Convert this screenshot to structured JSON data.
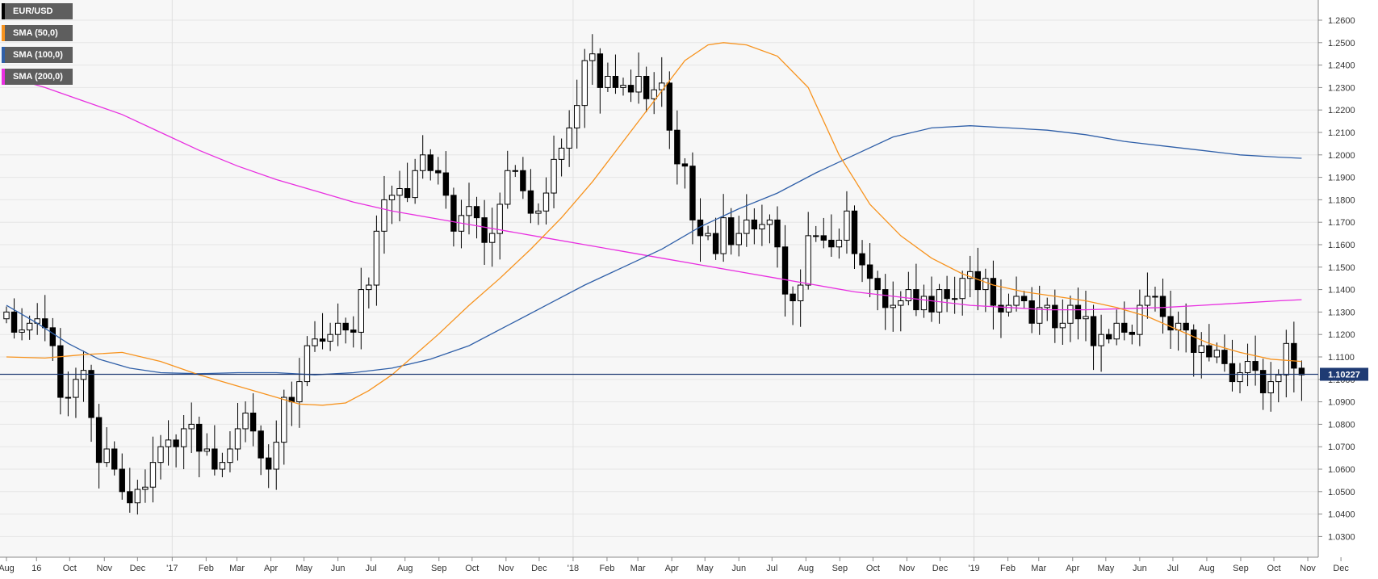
{
  "legend": [
    {
      "label": "EUR/USD",
      "color": "#000000"
    },
    {
      "label": "SMA (50,0)",
      "color": "#f7931e"
    },
    {
      "label": "SMA (100,0)",
      "color": "#2f5fa8"
    },
    {
      "label": "SMA (200,0)",
      "color": "#e82fe0"
    }
  ],
  "price_label": "1.10227",
  "chart_data": {
    "type": "candlestick",
    "symbol": "EUR/USD",
    "timeframe": "weekly",
    "ylim": [
      1.024,
      1.265
    ],
    "y_ticks": [
      "1.2600",
      "1.2500",
      "1.2400",
      "1.2300",
      "1.2200",
      "1.2100",
      "1.2000",
      "1.1900",
      "1.1800",
      "1.1700",
      "1.1600",
      "1.1500",
      "1.1400",
      "1.1300",
      "1.1200",
      "1.1100",
      "1.1000",
      "1.0900",
      "1.0800",
      "1.0700",
      "1.0600",
      "1.0500",
      "1.0400",
      "1.0300"
    ],
    "x_ticks": [
      {
        "label": "Aug",
        "week": 0
      },
      {
        "label": "16",
        "week": 3.9
      },
      {
        "label": "Oct",
        "week": 8.2
      },
      {
        "label": "Nov",
        "week": 12.7
      },
      {
        "label": "Dec",
        "week": 17.0
      },
      {
        "label": "'17",
        "week": 21.5
      },
      {
        "label": "Feb",
        "week": 25.9
      },
      {
        "label": "Mar",
        "week": 29.9
      },
      {
        "label": "Apr",
        "week": 34.3
      },
      {
        "label": "May",
        "week": 38.6
      },
      {
        "label": "Jun",
        "week": 43.0
      },
      {
        "label": "Jul",
        "week": 47.3
      },
      {
        "label": "Aug",
        "week": 51.7
      },
      {
        "label": "Sep",
        "week": 56.1
      },
      {
        "label": "Oct",
        "week": 60.4
      },
      {
        "label": "Nov",
        "week": 64.8
      },
      {
        "label": "Dec",
        "week": 69.1
      },
      {
        "label": "'18",
        "week": 73.5
      },
      {
        "label": "Feb",
        "week": 77.9
      },
      {
        "label": "Mar",
        "week": 81.9
      },
      {
        "label": "Apr",
        "week": 86.3
      },
      {
        "label": "May",
        "week": 90.6
      },
      {
        "label": "Jun",
        "week": 95.0
      },
      {
        "label": "Jul",
        "week": 99.3
      },
      {
        "label": "Aug",
        "week": 103.7
      },
      {
        "label": "Sep",
        "week": 108.1
      },
      {
        "label": "Oct",
        "week": 112.4
      },
      {
        "label": "Nov",
        "week": 116.8
      },
      {
        "label": "Dec",
        "week": 121.1
      },
      {
        "label": "'19",
        "week": 125.5
      },
      {
        "label": "Feb",
        "week": 129.9
      },
      {
        "label": "Mar",
        "week": 133.9
      },
      {
        "label": "Apr",
        "week": 138.3
      },
      {
        "label": "May",
        "week": 142.6
      },
      {
        "label": "Jun",
        "week": 147.0
      },
      {
        "label": "Jul",
        "week": 151.3
      },
      {
        "label": "Aug",
        "week": 155.7
      },
      {
        "label": "Sep",
        "week": 160.1
      },
      {
        "label": "Oct",
        "week": 164.4
      },
      {
        "label": "Nov",
        "week": 168.8
      },
      {
        "label": "Dec",
        "week": 173.1
      }
    ],
    "current_price": 1.10227,
    "close": [
      1.13,
      1.121,
      1.122,
      1.125,
      1.127,
      1.123,
      1.115,
      1.092,
      1.092,
      1.1,
      1.104,
      1.083,
      1.063,
      1.069,
      1.06,
      1.05,
      1.045,
      1.051,
      1.052,
      1.063,
      1.07,
      1.073,
      1.07,
      1.078,
      1.08,
      1.068,
      1.069,
      1.06,
      1.063,
      1.069,
      1.078,
      1.085,
      1.077,
      1.065,
      1.06,
      1.072,
      1.092,
      1.09,
      1.099,
      1.115,
      1.118,
      1.117,
      1.12,
      1.125,
      1.122,
      1.121,
      1.14,
      1.142,
      1.166,
      1.18,
      1.182,
      1.185,
      1.181,
      1.193,
      1.2,
      1.193,
      1.192,
      1.182,
      1.166,
      1.173,
      1.177,
      1.172,
      1.161,
      1.165,
      1.178,
      1.193,
      1.193,
      1.184,
      1.174,
      1.175,
      1.183,
      1.198,
      1.203,
      1.212,
      1.222,
      1.242,
      1.245,
      1.23,
      1.235,
      1.23,
      1.231,
      1.228,
      1.235,
      1.225,
      1.229,
      1.232,
      1.211,
      1.196,
      1.195,
      1.171,
      1.164,
      1.165,
      1.156,
      1.172,
      1.16,
      1.165,
      1.171,
      1.167,
      1.169,
      1.171,
      1.159,
      1.138,
      1.135,
      1.142,
      1.164,
      1.164,
      1.162,
      1.159,
      1.162,
      1.175,
      1.156,
      1.151,
      1.145,
      1.14,
      1.132,
      1.133,
      1.135,
      1.14,
      1.131,
      1.137,
      1.13,
      1.14,
      1.136,
      1.136,
      1.145,
      1.148,
      1.14,
      1.145,
      1.133,
      1.13,
      1.133,
      1.137,
      1.135,
      1.125,
      1.132,
      1.133,
      1.123,
      1.125,
      1.133,
      1.127,
      1.128,
      1.115,
      1.12,
      1.118,
      1.125,
      1.121,
      1.12,
      1.133,
      1.137,
      1.137,
      1.128,
      1.122,
      1.125,
      1.122,
      1.112,
      1.115,
      1.11,
      1.113,
      1.107,
      1.099,
      1.103,
      1.108,
      1.104,
      1.094,
      1.099,
      1.102,
      1.116,
      1.105,
      1.102
    ],
    "sma50": [
      [
        0,
        1.11
      ],
      [
        5,
        1.1095
      ],
      [
        10,
        1.111
      ],
      [
        15,
        1.112
      ],
      [
        20,
        1.108
      ],
      [
        25,
        1.102
      ],
      [
        30,
        1.097
      ],
      [
        35,
        1.092
      ],
      [
        38,
        1.089
      ],
      [
        41,
        1.0885
      ],
      [
        44,
        1.0895
      ],
      [
        47,
        1.095
      ],
      [
        50,
        1.102
      ],
      [
        53,
        1.111
      ],
      [
        56,
        1.12
      ],
      [
        60,
        1.133
      ],
      [
        64,
        1.145
      ],
      [
        68,
        1.158
      ],
      [
        72,
        1.172
      ],
      [
        76,
        1.188
      ],
      [
        80,
        1.206
      ],
      [
        84,
        1.224
      ],
      [
        88,
        1.242
      ],
      [
        91,
        1.249
      ],
      [
        93,
        1.25
      ],
      [
        96,
        1.249
      ],
      [
        100,
        1.244
      ],
      [
        104,
        1.23
      ],
      [
        108,
        1.2
      ],
      [
        112,
        1.178
      ],
      [
        116,
        1.164
      ],
      [
        120,
        1.154
      ],
      [
        124,
        1.147
      ],
      [
        128,
        1.142
      ],
      [
        132,
        1.139
      ],
      [
        136,
        1.137
      ],
      [
        140,
        1.135
      ],
      [
        144,
        1.132
      ],
      [
        148,
        1.128
      ],
      [
        152,
        1.122
      ],
      [
        156,
        1.116
      ],
      [
        160,
        1.112
      ],
      [
        164,
        1.109
      ],
      [
        168,
        1.108
      ]
    ],
    "sma100": [
      [
        0,
        1.133
      ],
      [
        4,
        1.125
      ],
      [
        8,
        1.116
      ],
      [
        12,
        1.109
      ],
      [
        16,
        1.105
      ],
      [
        20,
        1.103
      ],
      [
        25,
        1.1025
      ],
      [
        30,
        1.103
      ],
      [
        35,
        1.103
      ],
      [
        40,
        1.102
      ],
      [
        45,
        1.103
      ],
      [
        50,
        1.105
      ],
      [
        55,
        1.109
      ],
      [
        60,
        1.115
      ],
      [
        65,
        1.124
      ],
      [
        70,
        1.133
      ],
      [
        75,
        1.142
      ],
      [
        80,
        1.15
      ],
      [
        85,
        1.158
      ],
      [
        90,
        1.168
      ],
      [
        95,
        1.176
      ],
      [
        100,
        1.183
      ],
      [
        105,
        1.192
      ],
      [
        110,
        1.2
      ],
      [
        115,
        1.208
      ],
      [
        120,
        1.212
      ],
      [
        125,
        1.213
      ],
      [
        130,
        1.212
      ],
      [
        135,
        1.211
      ],
      [
        140,
        1.209
      ],
      [
        145,
        1.206
      ],
      [
        150,
        1.204
      ],
      [
        155,
        1.202
      ],
      [
        160,
        1.2
      ],
      [
        165,
        1.199
      ],
      [
        168,
        1.1985
      ]
    ],
    "sma200": [
      [
        0,
        1.235
      ],
      [
        5,
        1.23
      ],
      [
        10,
        1.224
      ],
      [
        15,
        1.218
      ],
      [
        20,
        1.21
      ],
      [
        25,
        1.202
      ],
      [
        30,
        1.195
      ],
      [
        35,
        1.189
      ],
      [
        40,
        1.184
      ],
      [
        45,
        1.179
      ],
      [
        50,
        1.175
      ],
      [
        55,
        1.172
      ],
      [
        60,
        1.169
      ],
      [
        65,
        1.166
      ],
      [
        70,
        1.163
      ],
      [
        75,
        1.16
      ],
      [
        80,
        1.157
      ],
      [
        85,
        1.154
      ],
      [
        90,
        1.151
      ],
      [
        95,
        1.148
      ],
      [
        100,
        1.145
      ],
      [
        105,
        1.142
      ],
      [
        110,
        1.139
      ],
      [
        115,
        1.137
      ],
      [
        120,
        1.135
      ],
      [
        125,
        1.133
      ],
      [
        130,
        1.132
      ],
      [
        135,
        1.131
      ],
      [
        140,
        1.131
      ],
      [
        145,
        1.1315
      ],
      [
        150,
        1.132
      ],
      [
        155,
        1.133
      ],
      [
        160,
        1.134
      ],
      [
        165,
        1.135
      ],
      [
        168,
        1.1355
      ]
    ]
  }
}
